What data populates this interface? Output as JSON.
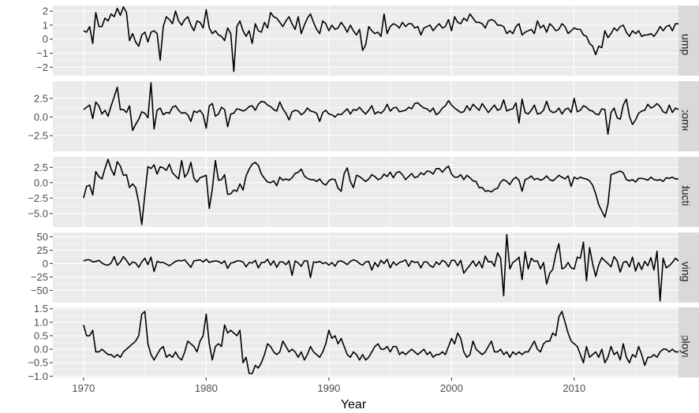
{
  "chart_data": {
    "type": "line",
    "xlabel": "Year",
    "xlim": [
      1967.5,
      2018.5
    ],
    "x_ticks": [
      1970,
      1980,
      1990,
      2000,
      2010
    ],
    "x_tick_labels": [
      "1970",
      "1980",
      "1990",
      "2000",
      "2010"
    ],
    "grid": true,
    "x_start": 1970.0,
    "x_step": 0.25,
    "facets": [
      {
        "name": "Consumption",
        "strip_label": "Consumption",
        "ylim": [
          -2.6,
          2.4
        ],
        "y_ticks": [
          -2,
          -1,
          0,
          1,
          2
        ],
        "y_tick_labels": [
          "−2",
          "−1",
          "0",
          "1",
          "2"
        ],
        "values": [
          0.6,
          0.5,
          0.9,
          -0.3,
          1.9,
          0.9,
          0.9,
          1.5,
          1.3,
          1.8,
          1.6,
          2.2,
          1.7,
          2.3,
          1.9,
          -0.1,
          0.4,
          -0.2,
          -0.5,
          0.3,
          0.5,
          -0.2,
          0.5,
          0.6,
          0.4,
          -1.5,
          0.9,
          1.6,
          1.4,
          1.1,
          2.0,
          1.3,
          1.0,
          1.4,
          1.6,
          1.0,
          0.6,
          1.3,
          1.2,
          0.8,
          2.1,
          0.8,
          0.4,
          0.6,
          0.3,
          0.2,
          -0.1,
          0.8,
          0.4,
          -2.3,
          0.9,
          1.3,
          0.6,
          0.2,
          0.6,
          -0.3,
          1.1,
          0.6,
          0.5,
          1.2,
          0.8,
          1.9,
          1.6,
          1.5,
          1.2,
          0.9,
          1.3,
          1.6,
          1.1,
          0.7,
          1.6,
          0.4,
          1.0,
          1.5,
          1.8,
          1.2,
          0.7,
          0.4,
          1.3,
          1.1,
          0.6,
          1.0,
          0.7,
          0.8,
          1.2,
          0.9,
          0.5,
          1.0,
          0.6,
          0.3,
          0.7,
          -0.8,
          -0.4,
          0.9,
          0.6,
          0.4,
          0.5,
          0.2,
          1.8,
          0.4,
          0.9,
          1.1,
          1.0,
          0.8,
          1.2,
          0.9,
          1.1,
          1.1,
          0.8,
          0.9,
          0.3,
          0.8,
          0.9,
          1.0,
          0.6,
          0.9,
          1.1,
          0.8,
          0.9,
          1.4,
          0.6,
          1.6,
          1.2,
          1.1,
          1.5,
          1.3,
          1.8,
          1.5,
          1.2,
          1.2,
          1.1,
          0.8,
          1.3,
          1.4,
          1.3,
          1.0,
          1.0,
          0.9,
          0.4,
          0.6,
          0.4,
          0.9,
          1.1,
          0.3,
          0.5,
          0.6,
          0.7,
          0.4,
          1.3,
          0.8,
          1.0,
          0.5,
          1.1,
          0.9,
          0.6,
          0.7,
          1.1,
          0.9,
          0.4,
          0.6,
          0.8,
          0.7,
          0.7,
          0.3,
          0.2,
          -0.3,
          -0.5,
          -1.1,
          -0.5,
          -0.6,
          0.6,
          0.1,
          0.4,
          0.8,
          0.6,
          0.9,
          1.0,
          0.5,
          0.2,
          0.6,
          0.4,
          0.6,
          0.2,
          0.3,
          0.3,
          0.4,
          0.2,
          0.5,
          0.9,
          0.6,
          0.9,
          1.0,
          0.6,
          1.1,
          1.1,
          1.2,
          0.6,
          0.7,
          0.7,
          0.6,
          0.5,
          1.0,
          0.7
        ]
      },
      {
        "name": "Income",
        "strip_label": "Income",
        "ylim": [
          -4.6,
          4.8
        ],
        "y_ticks": [
          -2.5,
          0.0,
          2.5
        ],
        "y_tick_labels": [
          "−2.5",
          "0.0",
          "2.5"
        ],
        "values": [
          1.0,
          1.3,
          1.6,
          -0.2,
          2.0,
          1.5,
          0.4,
          0.9,
          0.1,
          1.5,
          2.7,
          4.0,
          1.0,
          1.0,
          0.6,
          1.5,
          -1.8,
          -1.0,
          -0.3,
          0.7,
          0.5,
          -0.1,
          4.6,
          -1.6,
          0.9,
          1.2,
          0.3,
          0.6,
          0.5,
          1.3,
          1.5,
          0.9,
          0.5,
          0.6,
          0.3,
          -0.6,
          0.8,
          0.6,
          0.9,
          0.3,
          -1.5,
          1.5,
          1.8,
          0.1,
          0.4,
          1.3,
          1.0,
          -1.3,
          0.4,
          0.5,
          1.1,
          1.0,
          0.8,
          1.0,
          1.4,
          1.5,
          0.9,
          1.7,
          2.1,
          2.0,
          1.6,
          1.4,
          1.0,
          0.8,
          2.0,
          1.1,
          0.5,
          -0.4,
          0.7,
          0.9,
          0.8,
          0.3,
          0.6,
          1.2,
          0.8,
          0.7,
          0.5,
          -0.6,
          0.6,
          0.9,
          0.4,
          0.3,
          0.0,
          0.4,
          0.3,
          0.7,
          1.1,
          0.4,
          1.0,
          0.9,
          1.3,
          0.8,
          0.4,
          0.9,
          1.5,
          0.4,
          0.7,
          0.5,
          0.9,
          1.7,
          0.8,
          1.2,
          1.3,
          0.7,
          0.8,
          0.9,
          1.3,
          1.1,
          1.8,
          1.9,
          1.5,
          1.2,
          1.1,
          0.7,
          1.2,
          0.3,
          0.6,
          1.2,
          1.5,
          2.2,
          1.6,
          1.2,
          0.9,
          0.6,
          0.7,
          1.5,
          0.9,
          1.7,
          1.3,
          0.9,
          1.8,
          1.2,
          0.6,
          1.1,
          1.6,
          0.9,
          1.1,
          2.3,
          0.8,
          1.0,
          1.1,
          1.9,
          -0.8,
          2.4,
          0.6,
          0.4,
          0.9,
          1.6,
          0.4,
          0.5,
          0.9,
          2.1,
          0.9,
          0.6,
          0.7,
          1.2,
          0.4,
          1.0,
          1.2,
          0.6,
          2.5,
          0.7,
          0.9,
          1.5,
          1.3,
          0.9,
          0.8,
          0.4,
          0.3,
          1.1,
          1.0,
          -2.3,
          0.6,
          1.2,
          -0.1,
          -0.3,
          1.6,
          2.4,
          0.1,
          -1.0,
          -0.4,
          0.5,
          0.8,
          0.9,
          1.7,
          1.2,
          1.4,
          1.8,
          1.4,
          0.7,
          0.5,
          1.6,
          0.6,
          1.2,
          1.0,
          1.4,
          0.6,
          0.3,
          0.9,
          -0.2,
          1.4,
          2.6,
          -4.2,
          0.2,
          0.6,
          0.7,
          1.3,
          1.3,
          1.2,
          0.8,
          1.0,
          0.5,
          1.2,
          0.8,
          0.6,
          0.7,
          0.5,
          0.9,
          0.6,
          0.8
        ]
      },
      {
        "name": "Production",
        "strip_label": "Production",
        "ylim": [
          -7.2,
          4.2
        ],
        "y_ticks": [
          -5.0,
          -2.5,
          0.0,
          2.5
        ],
        "y_tick_labels": [
          "−5.0",
          "−2.5",
          "0.0",
          "2.5"
        ],
        "values": [
          -2.5,
          -0.6,
          -0.4,
          -2.0,
          1.8,
          1.0,
          0.6,
          2.3,
          3.8,
          2.2,
          1.2,
          3.4,
          2.7,
          1.2,
          1.3,
          -0.8,
          -0.2,
          -0.8,
          -3.2,
          -6.8,
          -1.9,
          2.6,
          2.3,
          2.9,
          1.4,
          2.6,
          2.4,
          2.0,
          3.0,
          1.6,
          1.1,
          0.6,
          3.6,
          0.9,
          1.6,
          3.3,
          0.7,
          0.1,
          0.8,
          1.0,
          1.2,
          -4.2,
          -1.0,
          3.6,
          0.4,
          0.5,
          1.3,
          -1.9,
          -1.8,
          -1.2,
          -1.4,
          -0.2,
          -1.2,
          1.1,
          2.2,
          3.0,
          3.3,
          2.8,
          1.4,
          0.7,
          0.1,
          0.0,
          0.3,
          -0.5,
          0.9,
          0.4,
          0.6,
          0.4,
          0.8,
          1.5,
          1.7,
          2.2,
          1.1,
          0.7,
          0.5,
          0.5,
          0.2,
          0.6,
          -0.1,
          -0.4,
          0.3,
          0.6,
          0.5,
          -0.9,
          -1.4,
          1.5,
          2.4,
          0.2,
          -0.8,
          1.2,
          1.0,
          0.6,
          0.2,
          0.6,
          1.3,
          1.0,
          0.5,
          0.7,
          1.4,
          1.0,
          1.7,
          0.8,
          1.6,
          1.8,
          1.3,
          0.5,
          1.0,
          1.5,
          0.8,
          1.0,
          1.6,
          1.3,
          1.9,
          1.8,
          1.4,
          2.3,
          2.3,
          1.7,
          2.3,
          2.7,
          1.4,
          0.9,
          0.9,
          1.3,
          0.5,
          1.2,
          0.8,
          0.3,
          0.2,
          -0.8,
          -0.8,
          -1.4,
          -1.3,
          -1.5,
          -1.1,
          -0.9,
          0.1,
          0.5,
          0.2,
          -0.3,
          0.5,
          0.9,
          0.4,
          -1.4,
          0.5,
          0.7,
          1.1,
          0.5,
          0.7,
          0.4,
          0.6,
          1.1,
          0.5,
          0.3,
          0.7,
          1.2,
          0.9,
          0.6,
          1.1,
          -0.6,
          0.9,
          0.6,
          0.9,
          0.7,
          0.6,
          0.3,
          -0.4,
          -1.8,
          -3.6,
          -4.6,
          -5.6,
          -3.5,
          1.3,
          1.5,
          1.7,
          1.9,
          1.6,
          0.5,
          0.3,
          0.5,
          0.1,
          0.7,
          0.7,
          0.6,
          0.4,
          0.9,
          0.5,
          0.4,
          0.5,
          0.2,
          0.8,
          0.7,
          0.9,
          0.6,
          0.6,
          0.9,
          0.8,
          0.3,
          1.0,
          0.6,
          0.2,
          -0.7,
          -0.3,
          -1.0,
          0.5,
          -0.8,
          -0.5,
          -0.2,
          0.2,
          0.4
        ]
      },
      {
        "name": "Savings",
        "strip_label": "Savings",
        "ylim": [
          -73,
          58
        ],
        "y_ticks": [
          -50,
          -25,
          0,
          25,
          50
        ],
        "y_tick_labels": [
          "−50",
          "−25",
          "0",
          "25",
          "50"
        ],
        "values": [
          5,
          7,
          7,
          3,
          4,
          6,
          1,
          -2,
          -3,
          1,
          13,
          -3,
          3,
          13,
          6,
          -3,
          3,
          1,
          -7,
          3,
          10,
          -2,
          12,
          -15,
          4,
          2,
          2,
          -1,
          -4,
          0,
          4,
          6,
          5,
          7,
          0,
          -7,
          5,
          6,
          7,
          3,
          8,
          2,
          4,
          5,
          4,
          0,
          5,
          -9,
          1,
          2,
          5,
          5,
          3,
          -6,
          2,
          1,
          6,
          -8,
          2,
          2,
          8,
          -3,
          5,
          -7,
          3,
          3,
          -2,
          5,
          -22,
          5,
          1,
          -5,
          5,
          5,
          -26,
          3,
          2,
          4,
          0,
          2,
          -3,
          2,
          -5,
          4,
          5,
          2,
          -2,
          4,
          7,
          5,
          0,
          -3,
          3,
          4,
          -12,
          2,
          -6,
          6,
          0,
          8,
          -8,
          3,
          -3,
          2,
          4,
          7,
          -5,
          5,
          2,
          3,
          -8,
          3,
          3,
          -4,
          -7,
          3,
          -2,
          6,
          3,
          -6,
          6,
          6,
          -4,
          6,
          -18,
          -10,
          -3,
          5,
          -5,
          4,
          -8,
          14,
          3,
          4,
          -5,
          20,
          10,
          -60,
          54,
          -10,
          2,
          6,
          12,
          -30,
          22,
          -10,
          10,
          4,
          5,
          -10,
          2,
          -38,
          -18,
          -11,
          18,
          37,
          -10,
          -7,
          2,
          -8,
          -10,
          12,
          10,
          40,
          -32,
          30,
          0,
          -24,
          -2,
          11,
          5,
          0,
          -6,
          13,
          5,
          -16,
          2,
          4,
          -6,
          12,
          -14,
          2,
          -11,
          4,
          -4,
          11,
          -12,
          23,
          -70,
          10,
          -8,
          -4,
          2,
          10,
          5,
          3,
          5,
          4,
          3,
          0,
          3,
          5,
          0,
          -3
        ]
      },
      {
        "name": "Unemployment",
        "strip_label": "Unemployment",
        "ylim": [
          -1.05,
          1.55
        ],
        "y_ticks": [
          -1.0,
          -0.5,
          0.0,
          0.5,
          1.0,
          1.5
        ],
        "y_tick_labels": [
          "−1.0",
          "−0.5",
          "0.0",
          "0.5",
          "1.0",
          "1.5"
        ],
        "values": [
          0.9,
          0.5,
          0.5,
          0.7,
          -0.1,
          -0.1,
          0.0,
          -0.1,
          -0.2,
          -0.2,
          -0.3,
          -0.2,
          -0.3,
          -0.1,
          0.0,
          0.1,
          0.2,
          0.3,
          0.5,
          1.3,
          1.4,
          0.2,
          -0.2,
          -0.4,
          -0.2,
          0.0,
          0.1,
          -0.3,
          -0.2,
          -0.3,
          -0.1,
          -0.3,
          -0.4,
          -0.1,
          0.3,
          0.2,
          0.1,
          -0.1,
          0.3,
          0.5,
          1.3,
          0.2,
          -0.4,
          0.1,
          0.2,
          0.1,
          0.9,
          0.6,
          0.7,
          0.6,
          0.5,
          0.7,
          -0.5,
          -0.3,
          -0.9,
          -0.9,
          -0.6,
          -0.7,
          -0.5,
          -0.2,
          0.2,
          0.1,
          -0.1,
          -0.2,
          -0.1,
          0.3,
          0.1,
          -0.1,
          0.0,
          -0.1,
          -0.3,
          -0.1,
          -0.4,
          -0.2,
          0.1,
          -0.1,
          -0.2,
          -0.3,
          -0.1,
          0.2,
          0.7,
          0.4,
          0.5,
          0.2,
          0.4,
          0.1,
          -0.2,
          -0.3,
          -0.1,
          -0.2,
          -0.4,
          -0.2,
          -0.4,
          -0.3,
          -0.1,
          0.1,
          0.2,
          0.0,
          0.0,
          0.1,
          -0.1,
          0.1,
          0.1,
          -0.2,
          -0.1,
          -0.2,
          -0.1,
          0.0,
          -0.1,
          -0.2,
          -0.1,
          0.0,
          -0.2,
          -0.1,
          -0.3,
          -0.2,
          -0.2,
          -0.1,
          -0.2,
          0.1,
          0.4,
          0.2,
          0.6,
          0.4,
          -0.1,
          -0.3,
          -0.2,
          0.3,
          0.0,
          -0.1,
          -0.2,
          -0.1,
          0.1,
          0.3,
          -0.1,
          -0.1,
          0.0,
          -0.2,
          -0.1,
          -0.3,
          -0.1,
          -0.2,
          -0.1,
          -0.2,
          -0.1,
          -0.1,
          0.1,
          0.3,
          0.0,
          -0.1,
          0.2,
          0.3,
          0.3,
          0.6,
          0.5,
          1.2,
          1.4,
          1.0,
          0.6,
          0.3,
          0.2,
          0.1,
          -0.2,
          -0.5,
          0.1,
          -0.3,
          -0.2,
          -0.1,
          -0.3,
          0.0,
          -0.5,
          -0.3,
          0.1,
          -0.2,
          -0.1,
          -0.4,
          0.2,
          -0.3,
          -0.5,
          -0.2,
          -0.3,
          0.1,
          -0.2,
          -0.6,
          -0.3,
          -0.3,
          -0.2,
          -0.3,
          -0.1,
          0.0,
          0.0,
          -0.1,
          0.0,
          -0.1,
          -0.1
        ]
      }
    ]
  }
}
